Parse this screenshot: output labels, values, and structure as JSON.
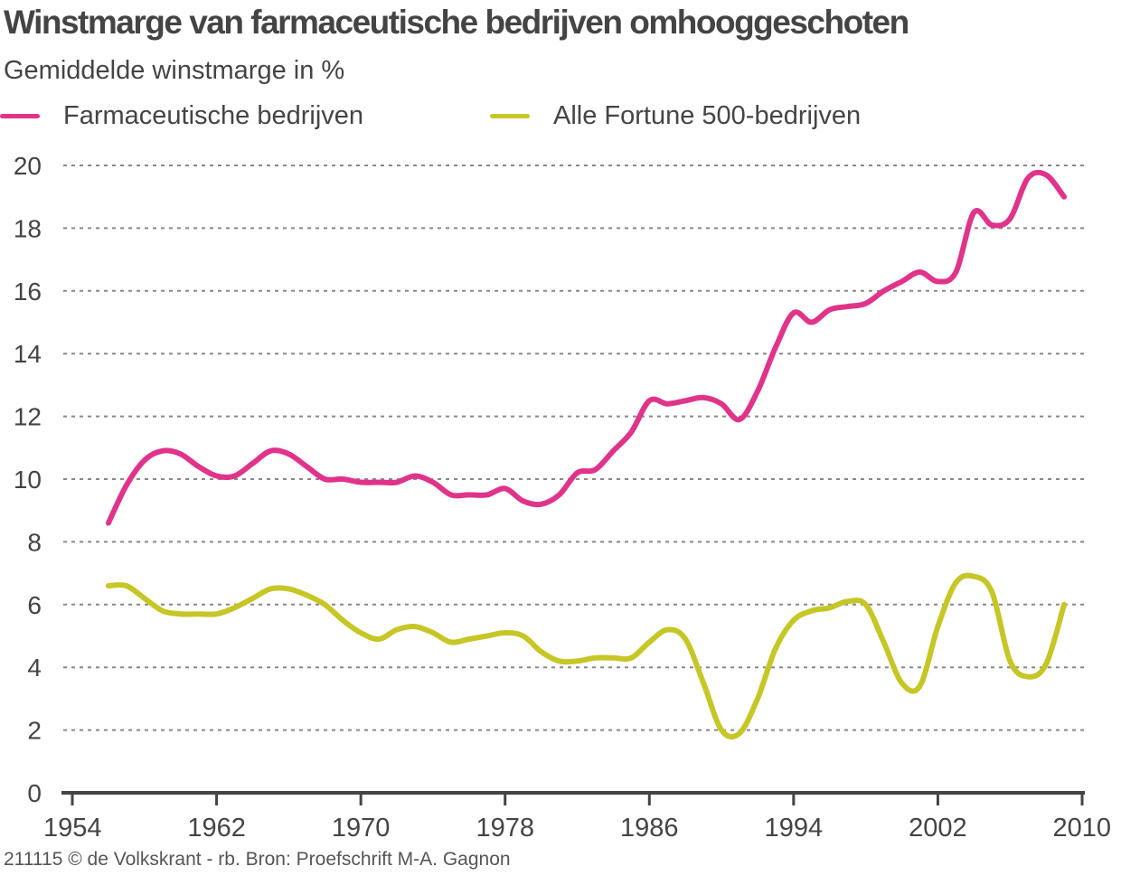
{
  "chart_data": {
    "type": "line",
    "title": "Winstmarge van farmaceutische bedrijven omhooggeschoten",
    "subtitle": "Gemiddelde winstmarge in %",
    "xlabel": "",
    "ylabel": "",
    "xlim": [
      1954,
      2010
    ],
    "ylim": [
      0,
      20
    ],
    "x_ticks": [
      1954,
      1962,
      1970,
      1978,
      1986,
      1994,
      2002,
      2010
    ],
    "y_ticks": [
      0,
      2,
      4,
      6,
      8,
      10,
      12,
      14,
      16,
      18,
      20
    ],
    "grid": true,
    "legend_position": "top-left",
    "series": [
      {
        "name": "Farmaceutische bedrijven",
        "color": "#e0338a",
        "points": [
          [
            1956,
            8.6
          ],
          [
            1957,
            9.8
          ],
          [
            1958,
            10.6
          ],
          [
            1959,
            10.9
          ],
          [
            1960,
            10.8
          ],
          [
            1961,
            10.4
          ],
          [
            1962,
            10.1
          ],
          [
            1963,
            10.1
          ],
          [
            1964,
            10.5
          ],
          [
            1965,
            10.9
          ],
          [
            1966,
            10.8
          ],
          [
            1967,
            10.4
          ],
          [
            1968,
            10.0
          ],
          [
            1969,
            10.0
          ],
          [
            1970,
            9.9
          ],
          [
            1971,
            9.9
          ],
          [
            1972,
            9.9
          ],
          [
            1973,
            10.1
          ],
          [
            1974,
            9.9
          ],
          [
            1975,
            9.5
          ],
          [
            1976,
            9.5
          ],
          [
            1977,
            9.5
          ],
          [
            1978,
            9.7
          ],
          [
            1979,
            9.3
          ],
          [
            1980,
            9.2
          ],
          [
            1981,
            9.5
          ],
          [
            1982,
            10.2
          ],
          [
            1983,
            10.3
          ],
          [
            1984,
            10.9
          ],
          [
            1985,
            11.5
          ],
          [
            1986,
            12.5
          ],
          [
            1987,
            12.4
          ],
          [
            1988,
            12.5
          ],
          [
            1989,
            12.6
          ],
          [
            1990,
            12.4
          ],
          [
            1991,
            11.9
          ],
          [
            1992,
            12.8
          ],
          [
            1993,
            14.2
          ],
          [
            1994,
            15.3
          ],
          [
            1995,
            15.0
          ],
          [
            1996,
            15.4
          ],
          [
            1997,
            15.5
          ],
          [
            1998,
            15.6
          ],
          [
            1999,
            16.0
          ],
          [
            2000,
            16.3
          ],
          [
            2001,
            16.6
          ],
          [
            2002,
            16.3
          ],
          [
            2003,
            16.6
          ],
          [
            2004,
            18.5
          ],
          [
            2005,
            18.1
          ],
          [
            2006,
            18.3
          ],
          [
            2007,
            19.6
          ],
          [
            2008,
            19.7
          ],
          [
            2009,
            19.0
          ]
        ]
      },
      {
        "name": "Alle Fortune 500-bedrijven",
        "color": "#c6c627",
        "points": [
          [
            1956,
            6.6
          ],
          [
            1957,
            6.6
          ],
          [
            1958,
            6.2
          ],
          [
            1959,
            5.8
          ],
          [
            1960,
            5.7
          ],
          [
            1961,
            5.7
          ],
          [
            1962,
            5.7
          ],
          [
            1963,
            5.9
          ],
          [
            1964,
            6.2
          ],
          [
            1965,
            6.5
          ],
          [
            1966,
            6.5
          ],
          [
            1967,
            6.3
          ],
          [
            1968,
            6.0
          ],
          [
            1969,
            5.5
          ],
          [
            1970,
            5.1
          ],
          [
            1971,
            4.9
          ],
          [
            1972,
            5.2
          ],
          [
            1973,
            5.3
          ],
          [
            1974,
            5.1
          ],
          [
            1975,
            4.8
          ],
          [
            1976,
            4.9
          ],
          [
            1977,
            5.0
          ],
          [
            1978,
            5.1
          ],
          [
            1979,
            5.0
          ],
          [
            1980,
            4.5
          ],
          [
            1981,
            4.2
          ],
          [
            1982,
            4.2
          ],
          [
            1983,
            4.3
          ],
          [
            1984,
            4.3
          ],
          [
            1985,
            4.3
          ],
          [
            1986,
            4.8
          ],
          [
            1987,
            5.2
          ],
          [
            1988,
            4.9
          ],
          [
            1989,
            3.5
          ],
          [
            1990,
            2.0
          ],
          [
            1991,
            1.9
          ],
          [
            1992,
            3.0
          ],
          [
            1993,
            4.6
          ],
          [
            1994,
            5.5
          ],
          [
            1995,
            5.8
          ],
          [
            1996,
            5.9
          ],
          [
            1997,
            6.1
          ],
          [
            1998,
            6.0
          ],
          [
            1999,
            4.8
          ],
          [
            2000,
            3.5
          ],
          [
            2001,
            3.4
          ],
          [
            2002,
            5.3
          ],
          [
            2003,
            6.7
          ],
          [
            2004,
            6.9
          ],
          [
            2005,
            6.4
          ],
          [
            2006,
            4.2
          ],
          [
            2007,
            3.7
          ],
          [
            2008,
            4.1
          ],
          [
            2009,
            6.0
          ]
        ]
      }
    ]
  },
  "footer": "211115 © de Volkskrant - rb. Bron: Proefschrift M-A. Gagnon"
}
